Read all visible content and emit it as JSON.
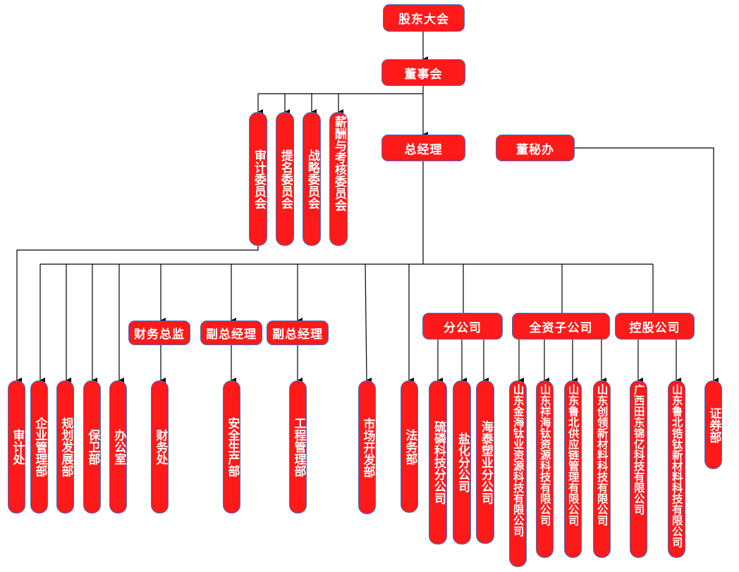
{
  "colors": {
    "box_fill": "#ff1a1a",
    "box_border": "#4472c4",
    "text": "#ffffff",
    "connector": "#000000"
  },
  "nodes": {
    "shareholders": "股东大会",
    "board": "董事会",
    "audit_committee": "审计委员会",
    "nomination_committee": "提名委员会",
    "strategy_committee": "战略委员会",
    "compensation_committee": "薪酬与考核委员会",
    "general_manager": "总经理",
    "board_secretary_office": "董秘办",
    "cfo": "财务总监",
    "deputy_gm_1": "副总经理",
    "deputy_gm_2": "副总经理",
    "branches": "分公司",
    "wholly_owned": "全资子公司",
    "holding": "控股公司",
    "audit_dept": "审计处",
    "enterprise_mgmt": "企业管理部",
    "planning": "规划发展部",
    "security": "保卫部",
    "office": "办公室",
    "finance": "财务处",
    "safety": "安全生产部",
    "engineering": "工程管理部",
    "marketing": "市场开发部",
    "legal": "法务部",
    "branch_1": "硫磷科技分公司",
    "branch_2": "盐化分公司",
    "branch_3": "海泰塑业分公司",
    "sub_1": "山东金海钛业资源科技有限公司",
    "sub_2": "山东祥海钛资源科技有限公司",
    "sub_3": "山东鲁北供应链管理有限公司",
    "sub_4": "山东创领新材料科技有限公司",
    "hold_1": "广西田东锦亿科技有限公司",
    "hold_2": "山东鲁北锆钛新材料科技有限公司",
    "securities": "证券部"
  }
}
